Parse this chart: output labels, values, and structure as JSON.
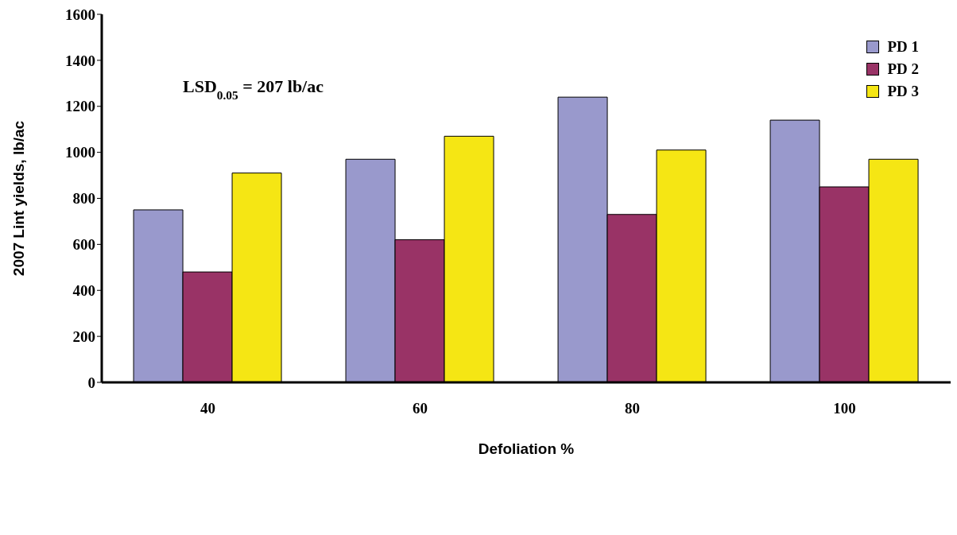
{
  "chart_data": {
    "type": "bar",
    "xlabel": "Defoliation %",
    "ylabel": "2007 Lint yields, lb/ac",
    "categories": [
      "40",
      "60",
      "80",
      "100"
    ],
    "series": [
      {
        "name": "PD 1",
        "color": "#9999cc",
        "values": [
          750,
          970,
          1240,
          1140
        ]
      },
      {
        "name": "PD 2",
        "color": "#993366",
        "values": [
          480,
          620,
          730,
          850
        ]
      },
      {
        "name": "PD 3",
        "color": "#f5e614",
        "values": [
          910,
          1070,
          1010,
          970
        ]
      }
    ],
    "ylim": [
      0,
      1600
    ],
    "yticks": [
      0,
      200,
      400,
      600,
      800,
      1000,
      1200,
      1400,
      1600
    ],
    "legend": "top right",
    "annotations": [
      "LSD$_{0.05}$ = 207 lb/ac"
    ]
  }
}
